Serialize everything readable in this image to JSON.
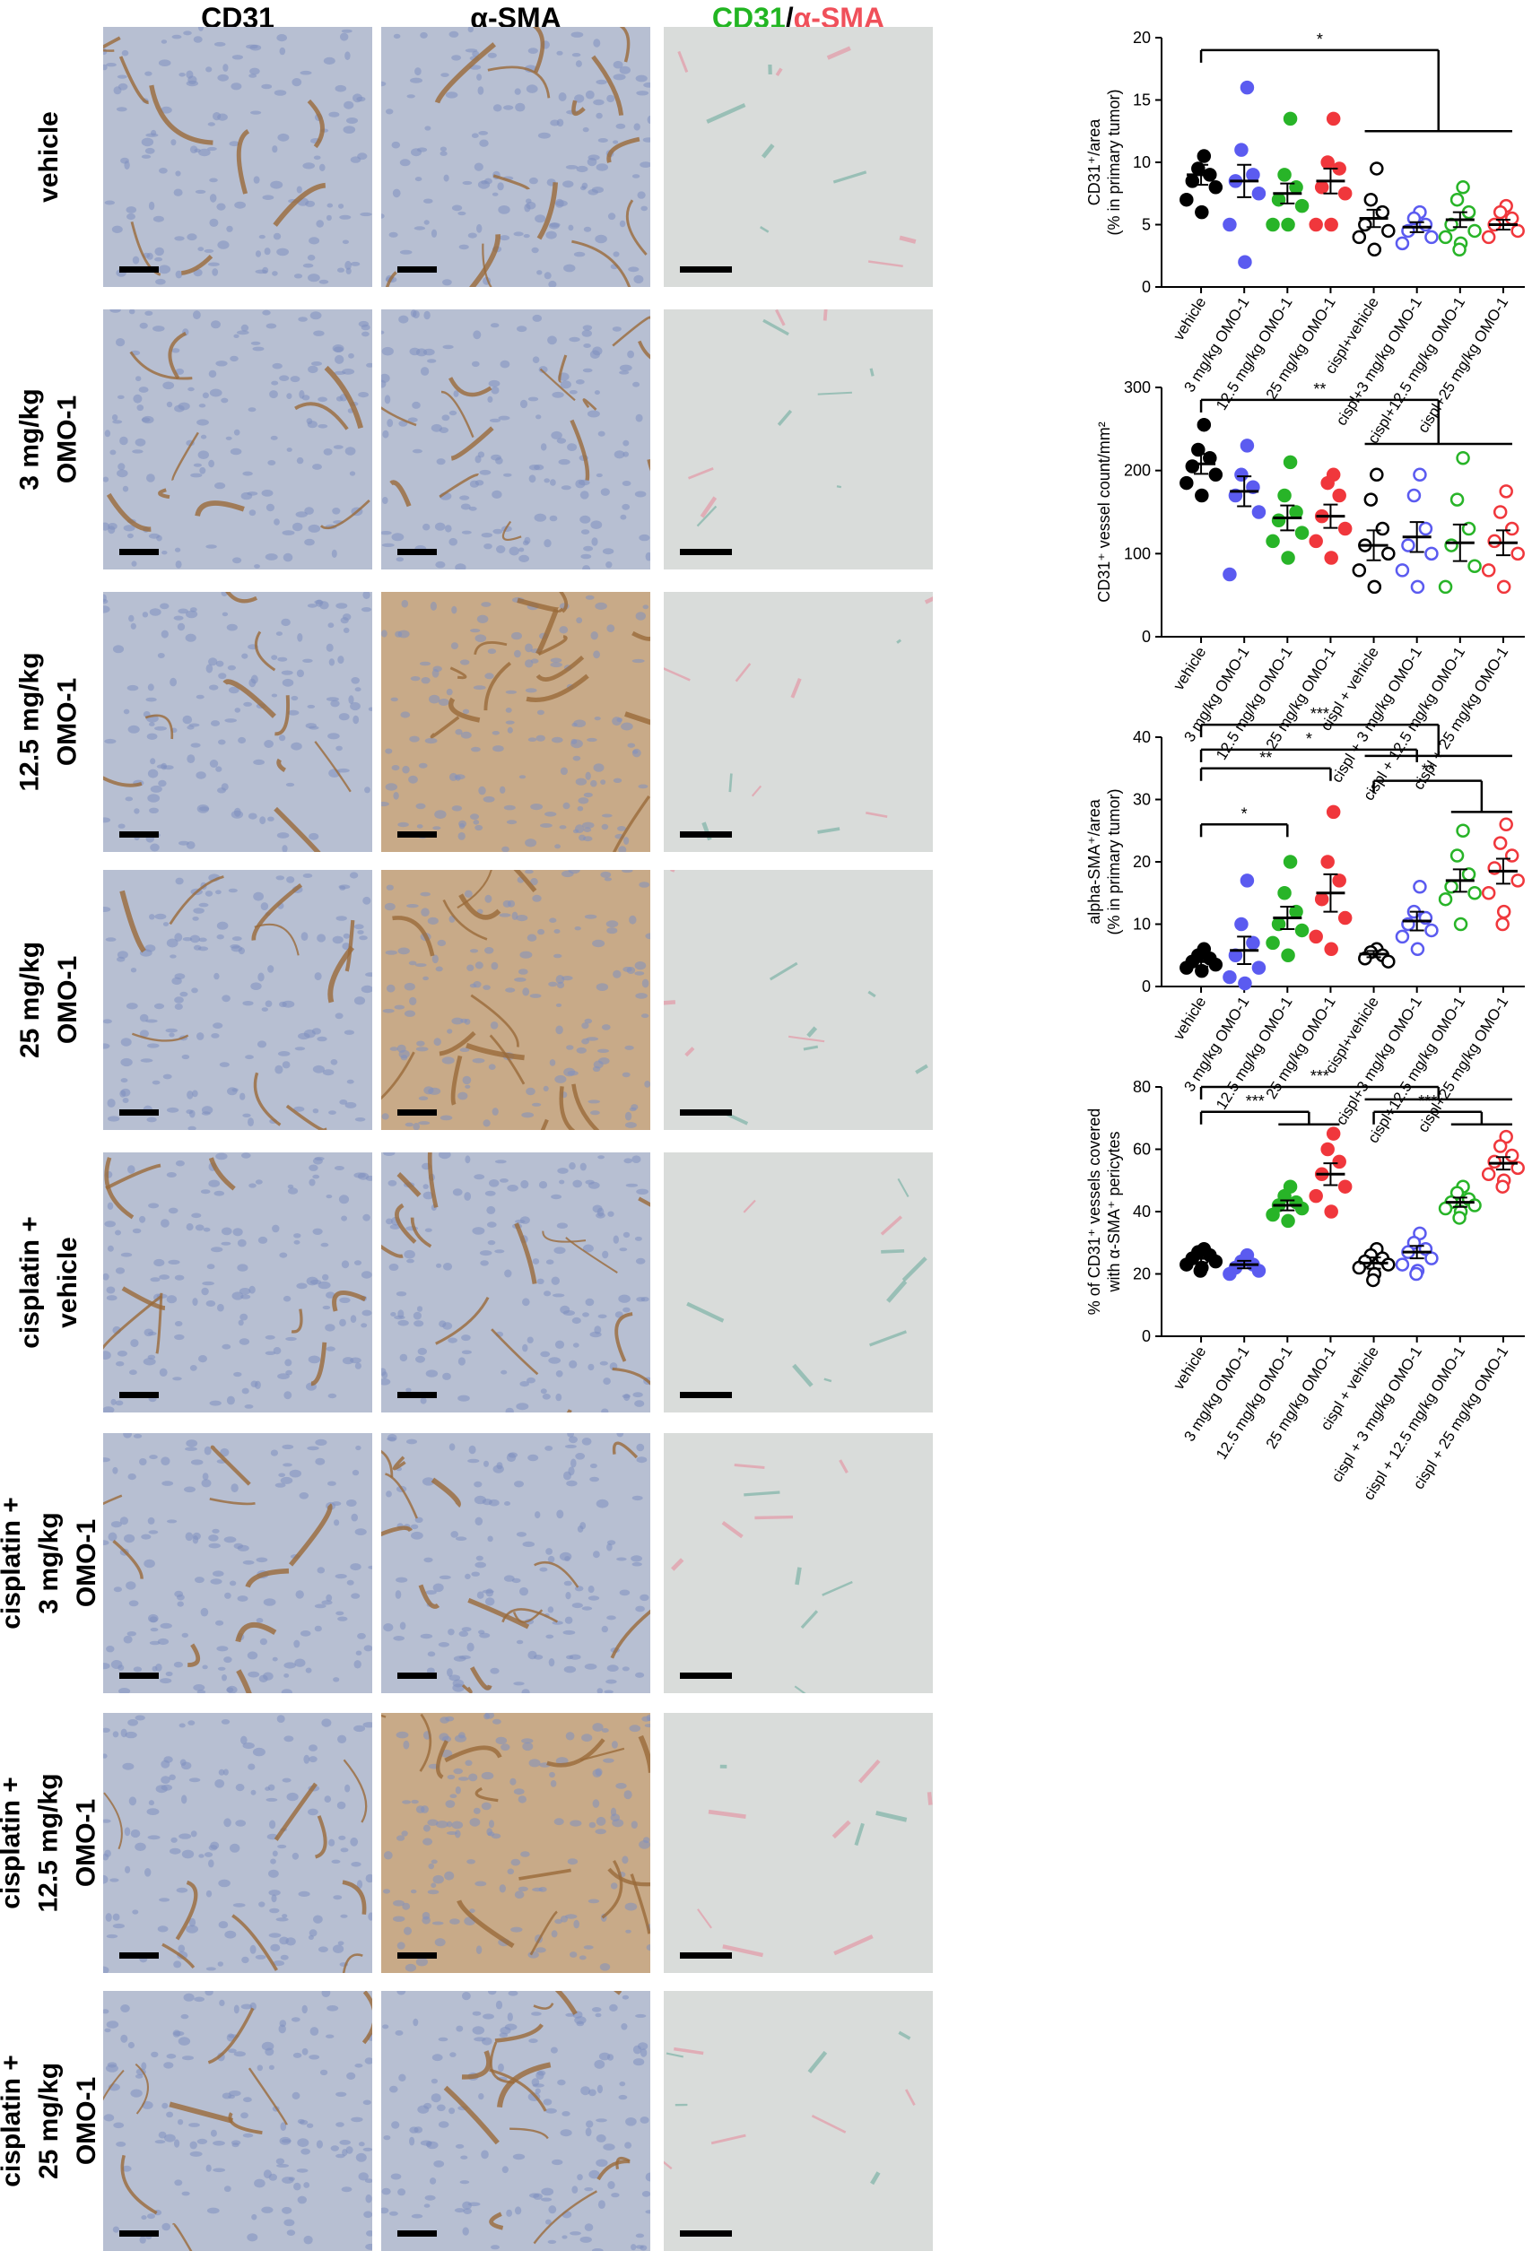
{
  "headers": {
    "cd31": "CD31",
    "asma": "α-SMA",
    "merge_green": "CD31",
    "merge_sep": "/",
    "merge_red": "α-SMA"
  },
  "rows": [
    {
      "label": "vehicle"
    },
    {
      "label": "3 mg/kg\nOMO-1"
    },
    {
      "label": "12.5 mg/kg\nOMO-1"
    },
    {
      "label": "25 mg/kg\nOMO-1"
    },
    {
      "label": "cisplatin +\nvehicle"
    },
    {
      "label": "cisplatin +\n3 mg/kg\nOMO-1"
    },
    {
      "label": "cisplatin +\n12.5 mg/kg\nOMO-1"
    },
    {
      "label": "cisplatin +\n25 mg/kg\nOMO-1"
    }
  ],
  "colors": {
    "black": "#000000",
    "blue": "#5b5bf0",
    "green": "#28b428",
    "red": "#f0373c",
    "ihc_bg": "#b7bfd2",
    "ihc_brown": "#9a6a3a",
    "fluor_bg": "#d9dcda"
  },
  "chart_data": [
    {
      "type": "scatter",
      "ylabel": "CD31+/area (% in primary tumor)",
      "ylabel_lines": [
        "CD31⁺/area",
        "(% in primary tumor)"
      ],
      "ylim": [
        0,
        20
      ],
      "yticks": [
        0,
        5,
        10,
        15,
        20
      ],
      "categories": [
        "vehicle",
        "3 mg/kg OMO-1",
        "12.5 mg/kg OMO-1",
        "25 mg/kg OMO-1",
        "cispl+vehicle",
        "cispl+3 mg/kg OMO-1",
        "cispl+12.5 mg/kg OMO-1",
        "cispl+25 mg/kg OMO-1"
      ],
      "series": [
        {
          "color": "#000000",
          "filled": true,
          "values": [
            10.5,
            9.5,
            9,
            8.5,
            8,
            7,
            6
          ]
        },
        {
          "color": "#5b5bf0",
          "filled": true,
          "values": [
            16,
            11,
            9,
            8.5,
            7.5,
            5,
            2
          ]
        },
        {
          "color": "#28b428",
          "filled": true,
          "values": [
            13.5,
            9,
            8,
            7,
            6.5,
            5,
            5
          ]
        },
        {
          "color": "#f0373c",
          "filled": true,
          "values": [
            13.5,
            10,
            9.5,
            8,
            7.5,
            5,
            5
          ]
        },
        {
          "color": "#000000",
          "filled": false,
          "values": [
            9.5,
            7,
            6,
            5,
            4.5,
            4,
            3
          ]
        },
        {
          "color": "#5b5bf0",
          "filled": false,
          "values": [
            6,
            5.5,
            5,
            4.5,
            4,
            3.5
          ]
        },
        {
          "color": "#28b428",
          "filled": false,
          "values": [
            8,
            7,
            6,
            5,
            4.5,
            4,
            3.5,
            3
          ]
        },
        {
          "color": "#f0373c",
          "filled": false,
          "values": [
            6.5,
            6,
            5.5,
            5,
            4.5,
            4
          ]
        }
      ],
      "means": [
        9,
        8.5,
        7.5,
        8.5,
        5.5,
        4.8,
        5.4,
        5
      ],
      "sems": [
        0.8,
        1.3,
        0.8,
        1.0,
        0.7,
        0.4,
        0.6,
        0.4
      ],
      "annotations": [
        {
          "label": "*",
          "left": 0,
          "rights": [
            4,
            5,
            6,
            7
          ],
          "level": 19,
          "group_level": 12.5
        }
      ]
    },
    {
      "type": "scatter",
      "ylabel": "CD31+ vessel count/mm2",
      "ylabel_lines": [
        "CD31⁺ vessel count/mm²"
      ],
      "ylim": [
        0,
        300
      ],
      "yticks": [
        0,
        100,
        200,
        300
      ],
      "categories": [
        "vehicle",
        "3 mg/kg OMO-1",
        "12.5 mg/kg OMO-1",
        "25 mg/kg OMO-1",
        "cispl + vehicle",
        "cispl + 3 mg/kg OMO-1",
        "cispl + 12.5 mg/kg OMO-1",
        "cispl + 25 mg/kg OMO-1"
      ],
      "series": [
        {
          "color": "#000000",
          "filled": true,
          "values": [
            255,
            225,
            215,
            205,
            195,
            185,
            170
          ]
        },
        {
          "color": "#5b5bf0",
          "filled": true,
          "values": [
            230,
            195,
            180,
            170,
            150,
            75
          ]
        },
        {
          "color": "#28b428",
          "filled": true,
          "values": [
            210,
            170,
            150,
            140,
            125,
            115,
            95
          ]
        },
        {
          "color": "#f0373c",
          "filled": true,
          "values": [
            195,
            185,
            170,
            145,
            130,
            115,
            95
          ]
        },
        {
          "color": "#000000",
          "filled": false,
          "values": [
            195,
            165,
            130,
            110,
            100,
            80,
            60
          ]
        },
        {
          "color": "#5b5bf0",
          "filled": false,
          "values": [
            195,
            170,
            130,
            110,
            100,
            80,
            60
          ]
        },
        {
          "color": "#28b428",
          "filled": false,
          "values": [
            215,
            165,
            130,
            110,
            85,
            60
          ]
        },
        {
          "color": "#f0373c",
          "filled": false,
          "values": [
            175,
            150,
            130,
            115,
            100,
            80,
            60
          ]
        }
      ],
      "means": [
        208,
        175,
        143,
        145,
        110,
        120,
        113,
        113
      ],
      "sems": [
        12,
        18,
        15,
        14,
        18,
        18,
        22,
        15
      ],
      "annotations": [
        {
          "label": "**",
          "left": 0,
          "rights": [
            4,
            5,
            6,
            7
          ],
          "level": 285,
          "group_level": 232
        }
      ]
    },
    {
      "type": "scatter",
      "ylabel": "alpha-SMA+/area (% in primary tumor)",
      "ylabel_lines": [
        "alpha-SMA⁺/area",
        "(% in primary tumor)"
      ],
      "ylim": [
        0,
        40
      ],
      "yticks": [
        0,
        10,
        20,
        30,
        40
      ],
      "categories": [
        "vehicle",
        "3 mg/kg OMO-1",
        "12.5 mg/kg OMO-1",
        "25 mg/kg OMO-1",
        "cispl+vehicle",
        "cispl+3 mg/kg OMO-1",
        "cispl+12.5 mg/kg OMO-1",
        "cispl+25 mg/kg OMO-1"
      ],
      "series": [
        {
          "color": "#000000",
          "filled": true,
          "values": [
            6,
            5,
            4.5,
            4,
            3.5,
            3,
            2.5
          ]
        },
        {
          "color": "#5b5bf0",
          "filled": true,
          "values": [
            17,
            10,
            7,
            5,
            3,
            1.5,
            0.5
          ]
        },
        {
          "color": "#28b428",
          "filled": true,
          "values": [
            20,
            15,
            12,
            10,
            9,
            7,
            5
          ]
        },
        {
          "color": "#f0373c",
          "filled": true,
          "values": [
            28,
            20,
            17,
            14,
            11,
            8,
            6
          ]
        },
        {
          "color": "#000000",
          "filled": false,
          "values": [
            6,
            5.5,
            5,
            4.5,
            4
          ]
        },
        {
          "color": "#5b5bf0",
          "filled": false,
          "values": [
            16,
            12,
            11,
            10,
            9,
            8,
            6
          ]
        },
        {
          "color": "#28b428",
          "filled": false,
          "values": [
            25,
            21,
            18,
            16,
            15,
            14,
            10
          ]
        },
        {
          "color": "#f0373c",
          "filled": false,
          "values": [
            26,
            23,
            21,
            19,
            17,
            15,
            12,
            10
          ]
        }
      ],
      "means": [
        4,
        5.8,
        11,
        15,
        5.2,
        10.5,
        17,
        18.5
      ],
      "sems": [
        0.8,
        2.2,
        1.8,
        3.0,
        0.5,
        1.5,
        1.8,
        2.0
      ],
      "annotations": [
        {
          "label": "***",
          "left": 0,
          "rights": [
            4,
            5,
            6,
            7
          ],
          "level": 42,
          "group_level": 37
        },
        {
          "label": "*",
          "left": 0,
          "rights": [
            5
          ],
          "level": 38,
          "group_level": null
        },
        {
          "label": "**",
          "left": 0,
          "rights": [
            3
          ],
          "level": 35,
          "group_level": null
        },
        {
          "label": "*",
          "left": 0,
          "rights": [
            2
          ],
          "level": 26,
          "group_level": null
        },
        {
          "label": "**",
          "left": 4,
          "rights": [
            6,
            7
          ],
          "level": 33,
          "group_level": 28
        }
      ]
    },
    {
      "type": "scatter",
      "ylabel": "% of CD31+ vessels covered with α-SMA+ pericytes",
      "ylabel_lines": [
        "% of CD31⁺ vessels covered",
        "with α-SMA⁺ pericytes"
      ],
      "ylim": [
        0,
        80
      ],
      "yticks": [
        0,
        20,
        40,
        60,
        80
      ],
      "categories": [
        "vehicle",
        "3 mg/kg OMO-1",
        "12.5 mg/kg OMO-1",
        "25 mg/kg OMO-1",
        "cispl + vehicle",
        "cispl + 3 mg/kg OMO-1",
        "cispl + 12.5 mg/kg OMO-1",
        "cispl + 25 mg/kg OMO-1"
      ],
      "series": [
        {
          "color": "#000000",
          "filled": true,
          "values": [
            28,
            27,
            26,
            25,
            24,
            23,
            22,
            21
          ]
        },
        {
          "color": "#5b5bf0",
          "filled": true,
          "values": [
            26,
            24,
            23,
            22,
            21,
            20
          ]
        },
        {
          "color": "#28b428",
          "filled": true,
          "values": [
            48,
            45,
            43,
            42,
            41,
            39,
            37
          ]
        },
        {
          "color": "#f0373c",
          "filled": true,
          "values": [
            65,
            60,
            56,
            52,
            48,
            45,
            40
          ]
        },
        {
          "color": "#000000",
          "filled": false,
          "values": [
            28,
            26,
            25,
            24,
            23,
            22,
            20,
            18
          ]
        },
        {
          "color": "#5b5bf0",
          "filled": false,
          "values": [
            33,
            30,
            28,
            27,
            25,
            23,
            21,
            20
          ]
        },
        {
          "color": "#28b428",
          "filled": false,
          "values": [
            48,
            46,
            44,
            43,
            42,
            41,
            40,
            38
          ]
        },
        {
          "color": "#f0373c",
          "filled": false,
          "values": [
            64,
            61,
            58,
            56,
            54,
            52,
            50,
            48
          ]
        }
      ],
      "means": [
        25,
        23,
        42,
        52,
        23.5,
        27,
        43,
        55.5
      ],
      "sems": [
        1.3,
        1.2,
        1.6,
        3.5,
        1.8,
        2.0,
        1.5,
        2.0
      ],
      "annotations": [
        {
          "label": "***",
          "left": 0,
          "rights": [
            4,
            5,
            6,
            7
          ],
          "level": 80,
          "group_level": 76
        },
        {
          "label": "***",
          "left": 0,
          "rights": [
            2,
            3
          ],
          "level": 72,
          "group_level": 68
        },
        {
          "label": "***",
          "left": 4,
          "rights": [
            6,
            7
          ],
          "level": 72,
          "group_level": 68
        }
      ]
    }
  ]
}
